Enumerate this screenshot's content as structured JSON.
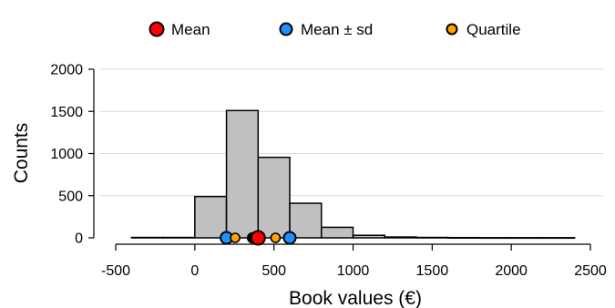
{
  "chart_data": {
    "type": "bar",
    "subtype": "histogram",
    "xlabel": "Book values (€)",
    "ylabel": "Counts",
    "xlim": [
      -500,
      2500
    ],
    "ylim": [
      0,
      2000
    ],
    "x_ticks": [
      -500,
      0,
      500,
      1000,
      1500,
      2000,
      2500
    ],
    "y_ticks": [
      0,
      500,
      1000,
      1500,
      2000
    ],
    "x_tick_labels": [
      "-500",
      "0",
      "500",
      "1000",
      "1500",
      "2000",
      "2500"
    ],
    "y_tick_labels": [
      "0",
      "500",
      "1000",
      "1500",
      "2000"
    ],
    "grid": "horizontal",
    "legend_position": "top",
    "bins": [
      {
        "x0": -400,
        "x1": -200,
        "count": 5
      },
      {
        "x0": -200,
        "x1": 0,
        "count": 5
      },
      {
        "x0": 0,
        "x1": 200,
        "count": 490
      },
      {
        "x0": 200,
        "x1": 400,
        "count": 1510
      },
      {
        "x0": 400,
        "x1": 600,
        "count": 955
      },
      {
        "x0": 600,
        "x1": 800,
        "count": 410
      },
      {
        "x0": 800,
        "x1": 1000,
        "count": 125
      },
      {
        "x0": 1000,
        "x1": 1200,
        "count": 30
      },
      {
        "x0": 1200,
        "x1": 1400,
        "count": 10
      },
      {
        "x0": 1400,
        "x1": 1600,
        "count": 5
      },
      {
        "x0": 1600,
        "x1": 1800,
        "count": 3
      },
      {
        "x0": 1800,
        "x1": 2000,
        "count": 2
      },
      {
        "x0": 2000,
        "x1": 2200,
        "count": 2
      },
      {
        "x0": 2200,
        "x1": 2400,
        "count": 2
      }
    ],
    "markers": [
      {
        "kind": "sd",
        "value": 200
      },
      {
        "kind": "quartile",
        "value": 255
      },
      {
        "kind": "median",
        "value": 365
      },
      {
        "kind": "mean",
        "value": 400
      },
      {
        "kind": "quartile",
        "value": 510
      },
      {
        "kind": "sd",
        "value": 600
      }
    ],
    "legend": [
      {
        "kind": "mean",
        "label": "Mean",
        "color": "#ff0000"
      },
      {
        "kind": "sd",
        "label": "Mean ± sd",
        "color": "#1e90ff"
      },
      {
        "kind": "quartile",
        "label": "Quartile",
        "color": "#ffa500"
      }
    ],
    "colors": {
      "bar_fill": "#c0c0c0",
      "bar_stroke": "#000000",
      "mean": "#ff0000",
      "sd": "#1e90ff",
      "quartile": "#ffa500",
      "median": "#000000",
      "grid": "#d9d9d9"
    }
  }
}
